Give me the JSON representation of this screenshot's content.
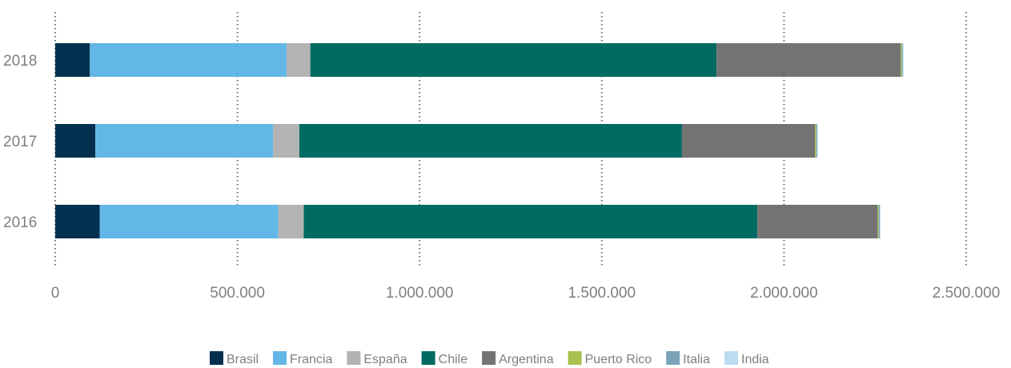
{
  "chart_data": {
    "type": "bar",
    "orientation": "horizontal",
    "stacked": true,
    "categories": [
      "2018",
      "2017",
      "2016"
    ],
    "series": [
      {
        "name": "Brasil",
        "color": "#04304f",
        "values": [
          95000,
          110000,
          122000
        ]
      },
      {
        "name": "Francia",
        "color": "#63b7e6",
        "values": [
          540000,
          488000,
          490000
        ]
      },
      {
        "name": "España",
        "color": "#b3b3b3",
        "values": [
          65000,
          72000,
          70000
        ]
      },
      {
        "name": "Chile",
        "color": "#006b63",
        "values": [
          1115000,
          1050000,
          1245000
        ]
      },
      {
        "name": "Argentina",
        "color": "#737373",
        "values": [
          505000,
          365000,
          330000
        ]
      },
      {
        "name": "Puerto Rico",
        "color": "#a9c14e",
        "values": [
          3000,
          3000,
          3000
        ]
      },
      {
        "name": "Italia",
        "color": "#7aa4b8",
        "values": [
          3000,
          3000,
          3000
        ]
      },
      {
        "name": "India",
        "color": "#bcdcf0",
        "values": [
          2000,
          2000,
          2000
        ]
      }
    ],
    "x_ticks": [
      "0",
      "500.000",
      "1.000.000",
      "1.500.000",
      "2.000.000",
      "2.500.000"
    ],
    "xlim": [
      0,
      2500000
    ],
    "grid": "vertical-dotted",
    "legend_position": "bottom"
  }
}
